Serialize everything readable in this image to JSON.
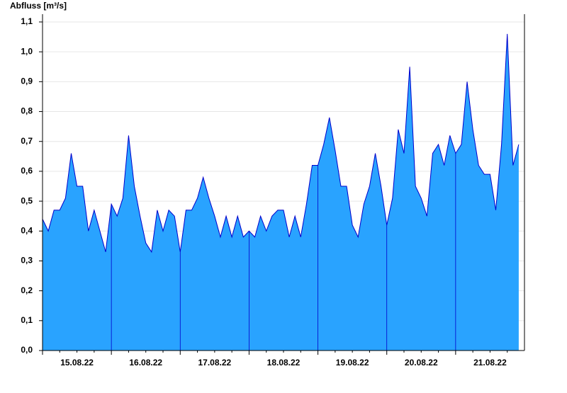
{
  "chart_data": {
    "type": "area",
    "title": "Abfluss [m³/s]",
    "categories": [
      null,
      null,
      null,
      null,
      null,
      null,
      "15.08.22",
      null,
      null,
      null,
      null,
      null,
      null,
      null,
      null,
      null,
      null,
      null,
      "16.08.22",
      null,
      null,
      null,
      null,
      null,
      null,
      null,
      null,
      null,
      null,
      null,
      "17.08.22",
      null,
      null,
      null,
      null,
      null,
      null,
      null,
      null,
      null,
      null,
      null,
      "18.08.22",
      null,
      null,
      null,
      null,
      null,
      null,
      null,
      null,
      null,
      null,
      null,
      "19.08.22",
      null,
      null,
      null,
      null,
      null,
      null,
      null,
      null,
      null,
      null,
      null,
      "20.08.22",
      null,
      null,
      null,
      null,
      null,
      null,
      null,
      null,
      null,
      null,
      null,
      "21.08.22",
      null,
      null,
      null,
      null,
      null
    ],
    "values": [
      0.44,
      0.4,
      0.47,
      0.47,
      0.51,
      0.66,
      0.55,
      0.55,
      0.4,
      0.47,
      0.4,
      0.33,
      0.49,
      0.45,
      0.51,
      0.72,
      0.55,
      0.45,
      0.36,
      0.33,
      0.47,
      0.4,
      0.47,
      0.45,
      0.33,
      0.47,
      0.47,
      0.51,
      0.58,
      0.51,
      0.45,
      0.38,
      0.45,
      0.38,
      0.45,
      0.38,
      0.4,
      0.38,
      0.45,
      0.4,
      0.45,
      0.47,
      0.47,
      0.38,
      0.45,
      0.38,
      0.49,
      0.62,
      0.62,
      0.69,
      0.78,
      0.67,
      0.55,
      0.55,
      0.42,
      0.38,
      0.49,
      0.55,
      0.66,
      0.55,
      0.42,
      0.51,
      0.74,
      0.66,
      0.95,
      0.55,
      0.51,
      0.45,
      0.66,
      0.69,
      0.62,
      0.72,
      0.66,
      0.69,
      0.9,
      0.74,
      0.62,
      0.59,
      0.59,
      0.47,
      0.69,
      1.06,
      0.62,
      0.69
    ],
    "color": "#29a3ff",
    "line_color": "#0000cc",
    "ylim": [
      0,
      1.1
    ],
    "yticks": [
      {
        "value": 0,
        "label": "0,0"
      },
      {
        "value": 0.1,
        "label": "0,1"
      },
      {
        "value": 0.2,
        "label": "0,2"
      },
      {
        "value": 0.3,
        "label": "0,3"
      },
      {
        "value": 0.4,
        "label": "0,4"
      },
      {
        "value": 0.5,
        "label": "0,5"
      },
      {
        "value": 0.6,
        "label": "0,6"
      },
      {
        "value": 0.7,
        "label": "0,7"
      },
      {
        "value": 0.8,
        "label": "0,8"
      },
      {
        "value": 0.9,
        "label": "0,9"
      },
      {
        "value": 1.0,
        "label": "1,0"
      },
      {
        "value": 1.1,
        "label": "1,1"
      }
    ],
    "grid": true
  }
}
